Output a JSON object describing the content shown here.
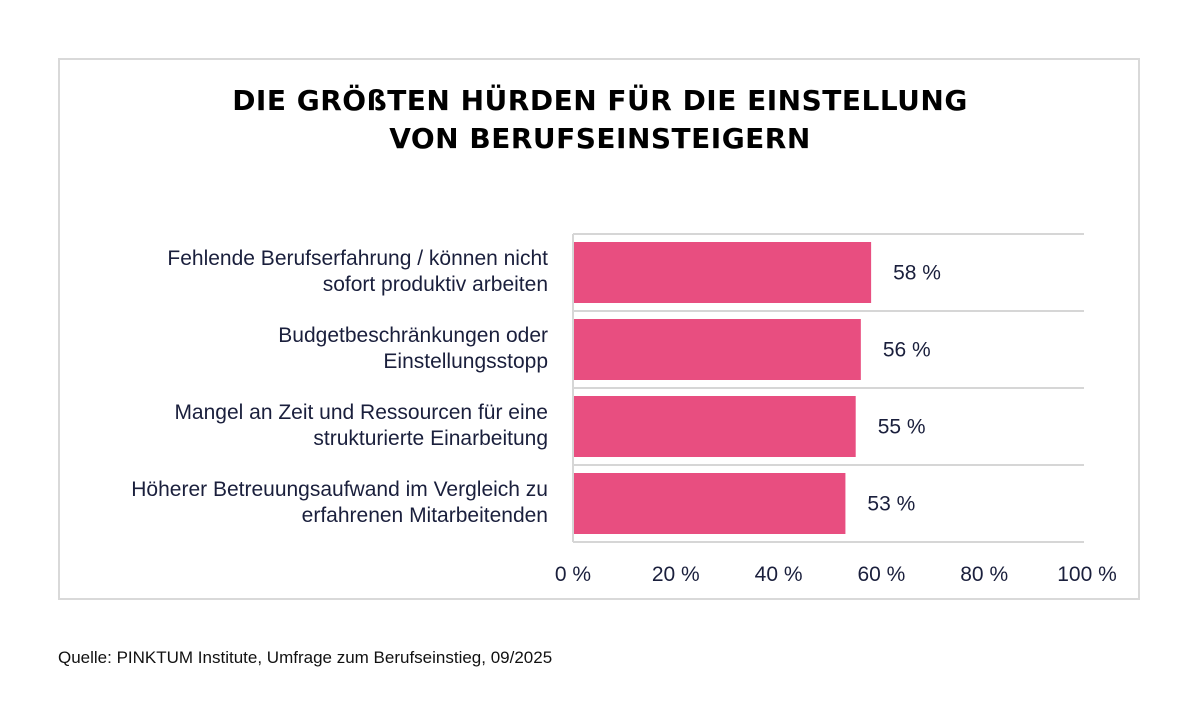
{
  "chart_data": {
    "type": "bar",
    "orientation": "horizontal",
    "title": [
      "DIE GRÖßTEN HÜRDEN FÜR DIE EINSTELLUNG",
      "VON BERUFSEINSTEIGERN"
    ],
    "categories": [
      [
        "Fehlende Berufserfahrung / können nicht",
        "sofort produktiv arbeiten"
      ],
      [
        "Budgetbeschränkungen oder",
        "Einstellungsstopp"
      ],
      [
        "Mangel an Zeit und Ressourcen für eine",
        "strukturierte Einarbeitung"
      ],
      [
        "Höherer Betreuungsaufwand im Vergleich zu",
        "erfahrenen Mitarbeitenden"
      ]
    ],
    "values": [
      58,
      56,
      55,
      53
    ],
    "value_labels": [
      "58 %",
      "56 %",
      "55 %",
      "53 %"
    ],
    "xlim": [
      0,
      100
    ],
    "xticks": [
      0,
      20,
      40,
      60,
      80,
      100
    ],
    "xtick_labels": [
      "0 %",
      "20 %",
      "40 %",
      "60 %",
      "80 %",
      "100 %"
    ],
    "grid": "horizontal separators",
    "bar_color": "#e84e80"
  },
  "source": "Quelle: PINKTUM Institute, Umfrage zum Berufseinstieg, 09/2025"
}
